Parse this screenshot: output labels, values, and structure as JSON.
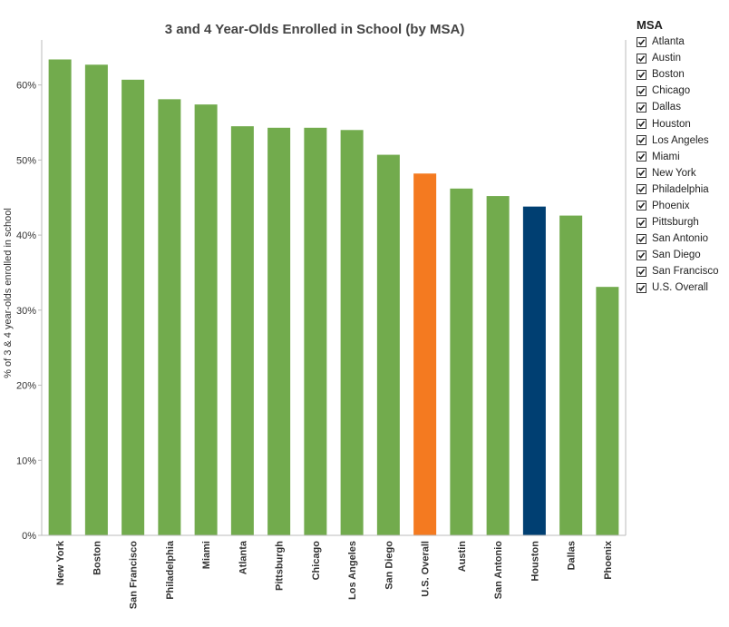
{
  "chart_data": {
    "type": "bar",
    "title": "3 and 4 Year-Olds Enrolled in School (by MSA)",
    "ylabel": "% of 3 & 4 year-olds enrolled in school",
    "xlabel": "",
    "ylim": [
      0,
      0.66
    ],
    "yticks": [
      0,
      0.1,
      0.2,
      0.3,
      0.4,
      0.5,
      0.6
    ],
    "ytick_labels": [
      "0%",
      "10%",
      "20%",
      "30%",
      "40%",
      "50%",
      "60%"
    ],
    "grid": false,
    "categories": [
      "New York",
      "Boston",
      "San Francisco",
      "Philadelphia",
      "Miami",
      "Atlanta",
      "Pittsburgh",
      "Chicago",
      "Los Angeles",
      "San Diego",
      "U.S. Overall",
      "Austin",
      "San Antonio",
      "Houston",
      "Dallas",
      "Phoenix"
    ],
    "values": [
      0.634,
      0.627,
      0.607,
      0.581,
      0.574,
      0.545,
      0.543,
      0.543,
      0.54,
      0.507,
      0.482,
      0.462,
      0.452,
      0.438,
      0.426,
      0.331
    ],
    "bar_colors": [
      "#72ab4d",
      "#72ab4d",
      "#72ab4d",
      "#72ab4d",
      "#72ab4d",
      "#72ab4d",
      "#72ab4d",
      "#72ab4d",
      "#72ab4d",
      "#72ab4d",
      "#f47a20",
      "#72ab4d",
      "#72ab4d",
      "#003f72",
      "#72ab4d",
      "#72ab4d"
    ],
    "legend": {
      "title": "MSA",
      "placement": "right",
      "items": [
        "Atlanta",
        "Austin",
        "Boston",
        "Chicago",
        "Dallas",
        "Houston",
        "Los Angeles",
        "Miami",
        "New York",
        "Philadelphia",
        "Phoenix",
        "Pittsburgh",
        "San Antonio",
        "San Diego",
        "San Francisco",
        "U.S. Overall"
      ]
    }
  },
  "colors": {
    "default_bar": "#72ab4d",
    "highlight_us": "#f47a20",
    "highlight_houston": "#003f72",
    "axis": "#bbbbbb",
    "text": "#333333"
  }
}
